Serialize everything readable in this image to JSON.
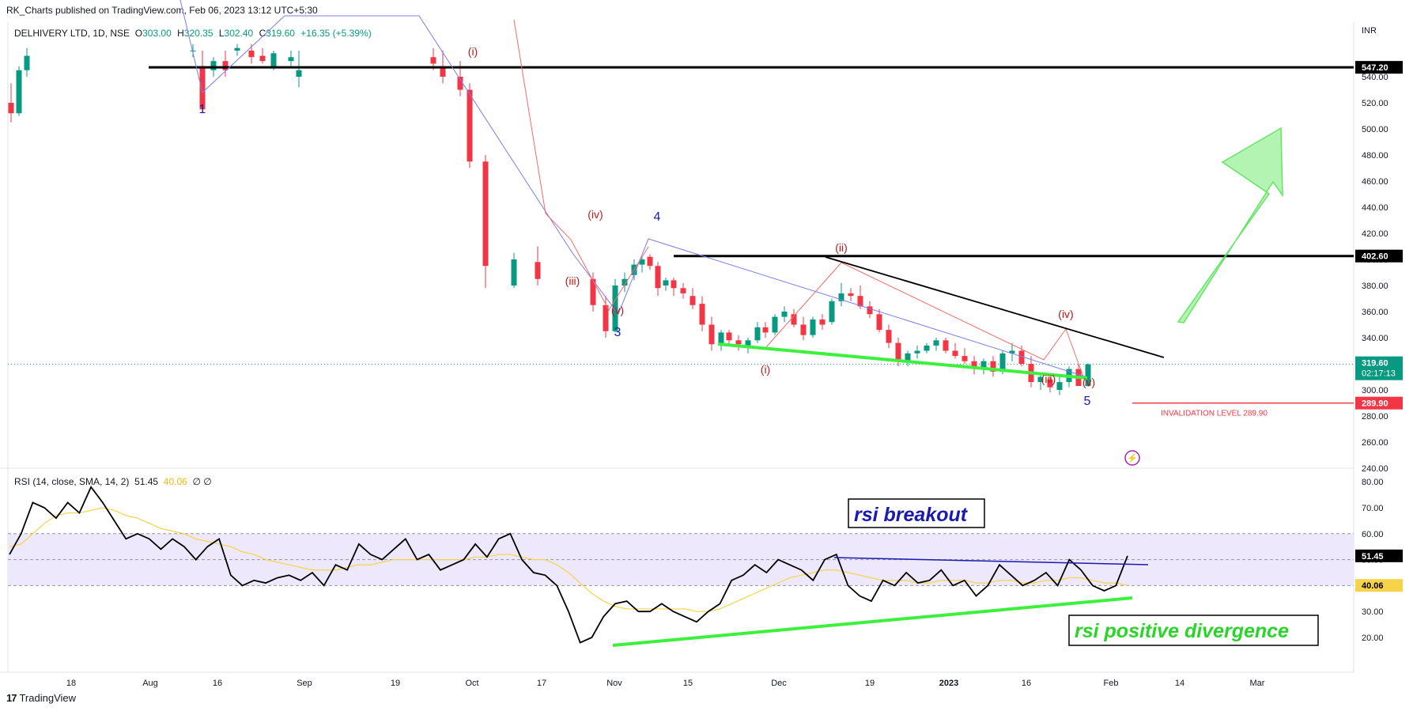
{
  "header": {
    "published_by": "RK_Charts published on TradingView.com, Feb 06, 2023 13:12 UTC+5:30"
  },
  "legend": {
    "symbol": "DELHIVERY LTD, 1D, NSE",
    "open_label": "O",
    "open": "303.00",
    "high_label": "H",
    "high": "320.35",
    "low_label": "L",
    "low": "302.40",
    "close_label": "C",
    "close": "319.60",
    "change": "+16.35 (+5.39%)"
  },
  "rsi_legend": {
    "label": "RSI (14, close, SMA, 14, 2)",
    "rsi": "51.45",
    "sma": "40.06",
    "extra": "∅ ∅"
  },
  "footer": {
    "brand": "TradingView",
    "logo": "17"
  },
  "colors": {
    "up": "#089981",
    "down": "#f23645",
    "green_line": "#3ef03e",
    "wave_blue": "#7b7bf0",
    "wave_red": "#f56b6b",
    "label_blue": "#1a1ab0",
    "label_red": "#c01818",
    "rsi_band": "#ede8fb",
    "rsi_sma": "#f7d34a"
  },
  "chart_data": [
    {
      "type": "candlestick",
      "currency": "INR",
      "ylim": [
        228,
        562
      ],
      "price_ticks": [
        240,
        260,
        280,
        300,
        320,
        340,
        360,
        380,
        400,
        420,
        440,
        460,
        480,
        500,
        520,
        540
      ],
      "x_ticks": [
        "18",
        "Aug",
        "16",
        "Sep",
        "19",
        "Oct",
        "17",
        "Nov",
        "15",
        "Dec",
        "19",
        "2023",
        "16",
        "Feb",
        "14",
        "Mar"
      ],
      "horizontal_levels": [
        {
          "label": "547.20",
          "value": 547.2
        },
        {
          "label": "402.60",
          "value": 402.6
        }
      ],
      "last_price": {
        "value": "319.60",
        "timer": "02:17:13"
      },
      "invalidation": {
        "value": "289.90",
        "text": "INVALIDATION LEVEL 289.90"
      },
      "wave_labels": [
        {
          "text": "1",
          "color": "blue"
        },
        {
          "text": "(i)",
          "color": "red"
        },
        {
          "text": "(iv)",
          "color": "red"
        },
        {
          "text": "(iii)",
          "color": "red"
        },
        {
          "text": "(v)",
          "color": "red"
        },
        {
          "text": "3",
          "color": "blue"
        },
        {
          "text": "4",
          "color": "blue"
        },
        {
          "text": "(ii)",
          "color": "red"
        },
        {
          "text": "(i)",
          "color": "red"
        },
        {
          "text": "(iv)",
          "color": "red"
        },
        {
          "text": "(iii)",
          "color": "red"
        },
        {
          "text": "(v)",
          "color": "red"
        },
        {
          "text": "5",
          "color": "blue"
        }
      ],
      "candles": [
        [
          520,
          535,
          505,
          512
        ],
        [
          512,
          548,
          510,
          545
        ],
        [
          545,
          562,
          540,
          556
        ],
        [
          560,
          565,
          555,
          560
        ],
        [
          548,
          560,
          512,
          515
        ],
        [
          545,
          555,
          540,
          552
        ],
        [
          552,
          560,
          540,
          545
        ],
        [
          560,
          565,
          556,
          562
        ],
        [
          560,
          565,
          550,
          555
        ],
        [
          556,
          562,
          550,
          552
        ],
        [
          548,
          560,
          545,
          558
        ],
        [
          552,
          560,
          548,
          555
        ],
        [
          540,
          560,
          532,
          545
        ],
        [
          555,
          562,
          545,
          550
        ],
        [
          548,
          560,
          535,
          540
        ],
        [
          540,
          552,
          525,
          530
        ],
        [
          530,
          535,
          470,
          475
        ],
        [
          475,
          480,
          378,
          395
        ],
        [
          380,
          405,
          378,
          400
        ],
        [
          398,
          410,
          380,
          385
        ],
        [
          385,
          390,
          360,
          365
        ],
        [
          365,
          372,
          340,
          345
        ],
        [
          345,
          385,
          344,
          380
        ],
        [
          380,
          390,
          375,
          385
        ],
        [
          388,
          400,
          384,
          396
        ],
        [
          396,
          402,
          390,
          400
        ],
        [
          402,
          404,
          392,
          395
        ],
        [
          395,
          398,
          372,
          378
        ],
        [
          380,
          386,
          376,
          384
        ],
        [
          384,
          386,
          372,
          378
        ],
        [
          378,
          382,
          370,
          374
        ],
        [
          372,
          378,
          362,
          365
        ],
        [
          366,
          372,
          345,
          350
        ],
        [
          350,
          356,
          330,
          335
        ],
        [
          335,
          346,
          330,
          344
        ],
        [
          344,
          346,
          334,
          338
        ],
        [
          338,
          342,
          330,
          335
        ],
        [
          334,
          340,
          328,
          338
        ],
        [
          338,
          352,
          336,
          348
        ],
        [
          348,
          352,
          340,
          344
        ],
        [
          344,
          358,
          342,
          356
        ],
        [
          356,
          364,
          352,
          360
        ],
        [
          358,
          362,
          348,
          350
        ],
        [
          350,
          356,
          338,
          342
        ],
        [
          342,
          356,
          340,
          354
        ],
        [
          354,
          358,
          346,
          350
        ],
        [
          352,
          370,
          350,
          368
        ],
        [
          368,
          382,
          364,
          374
        ],
        [
          374,
          378,
          368,
          372
        ],
        [
          372,
          380,
          362,
          364
        ],
        [
          364,
          368,
          355,
          358
        ],
        [
          358,
          362,
          344,
          346
        ],
        [
          346,
          350,
          332,
          336
        ],
        [
          336,
          340,
          318,
          322
        ],
        [
          322,
          330,
          318,
          328
        ],
        [
          328,
          334,
          324,
          330
        ],
        [
          330,
          336,
          328,
          334
        ],
        [
          334,
          340,
          330,
          338
        ],
        [
          338,
          340,
          328,
          330
        ],
        [
          330,
          336,
          324,
          326
        ],
        [
          326,
          332,
          320,
          322
        ],
        [
          322,
          326,
          312,
          316
        ],
        [
          316,
          324,
          312,
          322
        ],
        [
          322,
          326,
          310,
          314
        ],
        [
          314,
          330,
          312,
          328
        ],
        [
          328,
          336,
          322,
          330
        ],
        [
          330,
          334,
          318,
          320
        ],
        [
          320,
          326,
          302,
          306
        ],
        [
          306,
          312,
          300,
          310
        ],
        [
          308,
          312,
          298,
          302
        ],
        [
          300,
          310,
          296,
          306
        ],
        [
          306,
          318,
          302,
          316
        ],
        [
          316,
          320,
          303,
          303
        ],
        [
          303,
          320.35,
          302.4,
          319.6
        ]
      ]
    },
    {
      "type": "line",
      "title": "RSI (14, close, SMA, 14, 2)",
      "ylim": [
        14,
        82
      ],
      "y_ticks": [
        20,
        30,
        40,
        50,
        60,
        70,
        80
      ],
      "band": [
        40,
        60
      ],
      "mid_line": 50,
      "last_rsi": "51.45",
      "last_sma": "40.06",
      "annotations": [
        "rsi breakout",
        "rsi positive divergence"
      ],
      "series": [
        {
          "name": "RSI",
          "values": [
            52,
            60,
            72,
            70,
            66,
            72,
            68,
            78,
            72,
            65,
            58,
            60,
            58,
            54,
            58,
            55,
            50,
            55,
            58,
            44,
            40,
            42,
            41,
            43,
            44,
            42,
            45,
            40,
            48,
            46,
            56,
            52,
            50,
            54,
            58,
            50,
            52,
            46,
            48,
            50,
            56,
            51,
            58,
            60,
            50,
            45,
            44,
            40,
            30,
            18,
            20,
            28,
            33,
            34,
            30,
            30,
            33,
            30,
            28,
            26,
            30,
            33,
            42,
            44,
            48,
            45,
            50,
            48,
            46,
            42,
            50,
            52,
            40,
            36,
            34,
            42,
            40,
            45,
            41,
            42,
            46,
            40,
            42,
            36,
            40,
            48,
            44,
            40,
            42,
            45,
            40,
            50,
            46,
            40,
            38,
            40,
            51.45
          ]
        },
        {
          "name": "SMA",
          "values": [
            55,
            56,
            60,
            64,
            67,
            68,
            68,
            69,
            70,
            69,
            67,
            66,
            64,
            62,
            61,
            60,
            58,
            57,
            56,
            55,
            53,
            52,
            50,
            49,
            48,
            47,
            46,
            46,
            46,
            47,
            48,
            48,
            49,
            50,
            50,
            50,
            50,
            50,
            50,
            50,
            51,
            51,
            52,
            52,
            51,
            50,
            50,
            48,
            45,
            41,
            37,
            34,
            32,
            31,
            31,
            31,
            31,
            31,
            31,
            30,
            30,
            31,
            33,
            35,
            37,
            39,
            41,
            43,
            44,
            45,
            46,
            46,
            45,
            44,
            43,
            42,
            42,
            42,
            41,
            41,
            42,
            42,
            42,
            41,
            41,
            42,
            42,
            41,
            41,
            42,
            42,
            43,
            43,
            42,
            41,
            41,
            40.06
          ]
        }
      ]
    }
  ]
}
